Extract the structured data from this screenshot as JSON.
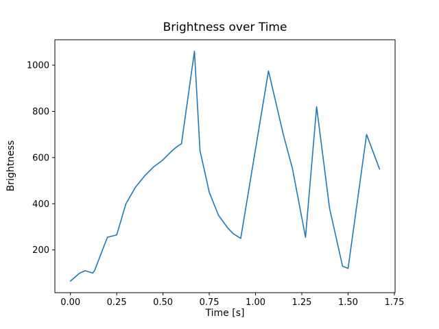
{
  "chart_data": {
    "type": "line",
    "title": "Brightness over Time",
    "xlabel": "Time [s]",
    "ylabel": "Brightness",
    "xlim": [
      -0.084,
      1.754
    ],
    "ylim": [
      15,
      1110
    ],
    "xticks": [
      0.0,
      0.25,
      0.5,
      0.75,
      1.0,
      1.25,
      1.5,
      1.75
    ],
    "xtick_labels": [
      "0.00",
      "0.25",
      "0.50",
      "0.75",
      "1.00",
      "1.25",
      "1.50",
      "1.75"
    ],
    "yticks": [
      200,
      400,
      600,
      800,
      1000
    ],
    "ytick_labels": [
      "200",
      "400",
      "600",
      "800",
      "1000"
    ],
    "grid": false,
    "legend": "none",
    "line_color": "#1f77b4",
    "line_width": 1.6,
    "spine_color": "#000000",
    "series": [
      {
        "name": "brightness",
        "x": [
          0.0,
          0.05,
          0.08,
          0.12,
          0.13,
          0.2,
          0.25,
          0.3,
          0.35,
          0.4,
          0.45,
          0.5,
          0.55,
          0.58,
          0.6,
          0.67,
          0.7,
          0.75,
          0.8,
          0.85,
          0.88,
          0.92,
          1.07,
          1.15,
          1.2,
          1.27,
          1.33,
          1.4,
          1.47,
          1.5,
          1.6,
          1.67
        ],
        "y": [
          65,
          100,
          110,
          100,
          110,
          255,
          265,
          400,
          470,
          520,
          560,
          590,
          630,
          650,
          660,
          1060,
          630,
          450,
          350,
          295,
          270,
          250,
          975,
          700,
          550,
          255,
          820,
          380,
          130,
          120,
          700,
          550
        ]
      }
    ]
  }
}
